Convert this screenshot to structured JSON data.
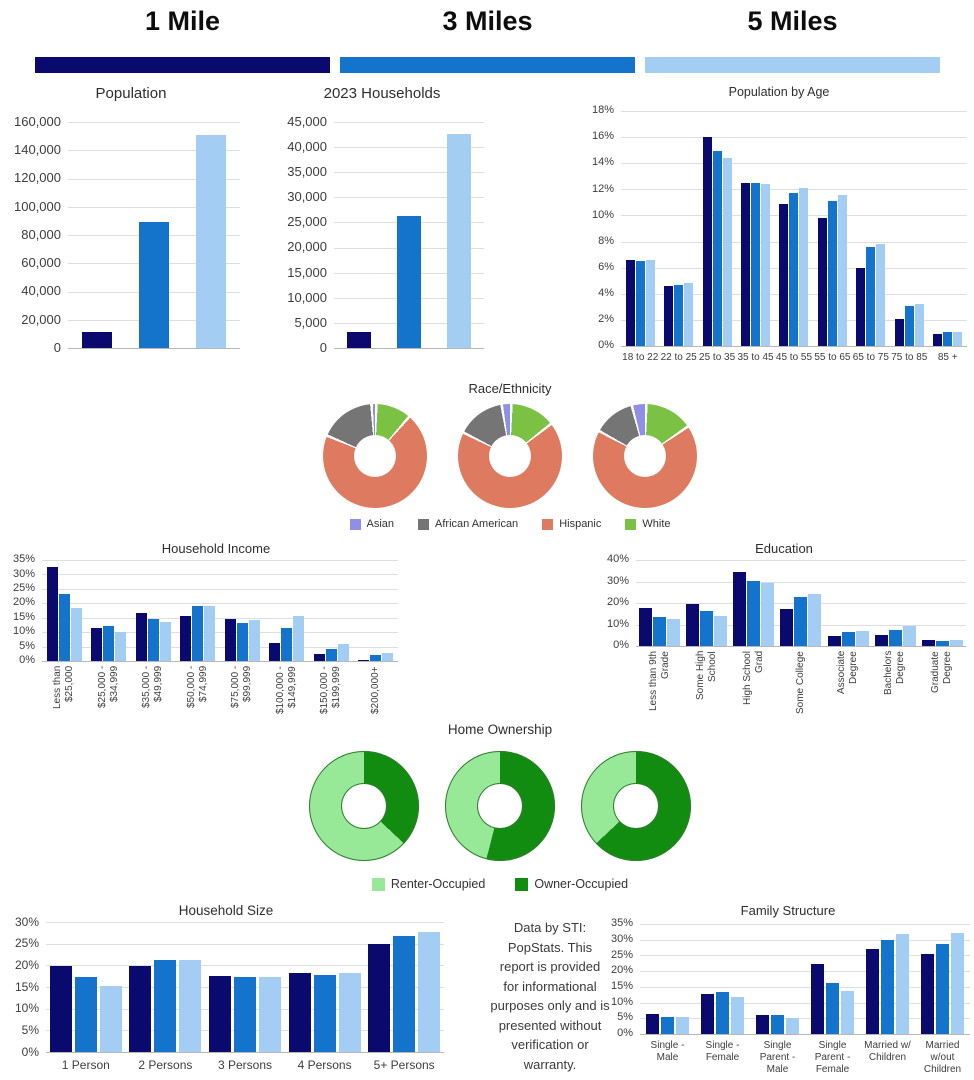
{
  "header": {
    "columns": [
      {
        "label": "1 Mile",
        "color": "#0a0a6e"
      },
      {
        "label": "3 Miles",
        "color": "#1474cb"
      },
      {
        "label": "5 Miles",
        "color": "#a4cdf4"
      }
    ]
  },
  "palette": {
    "series": [
      "#0a0a6e",
      "#1474cb",
      "#a4cdf4"
    ],
    "gridline": "#dedede",
    "axis_line": "#b8b8b8"
  },
  "series_names": [
    "1 Mile",
    "3 Miles",
    "5 Miles"
  ],
  "disclaimer": {
    "lines": [
      "Data by STI:",
      "PopStats. This",
      "report is provided",
      "for informational",
      "purposes only and is",
      "presented without",
      "verification or",
      "warranty."
    ]
  },
  "chart_data": [
    {
      "key": "population",
      "type": "bar",
      "title": "Population",
      "ylim": [
        0,
        160000
      ],
      "ystep": 20000,
      "format": "number",
      "grid": true,
      "legend_position": "none",
      "categories": [
        "1 Mile",
        "3 Miles",
        "5 Miles"
      ],
      "values": [
        11000,
        89000,
        151000
      ]
    },
    {
      "key": "households",
      "type": "bar",
      "title": "2023 Households",
      "ylim": [
        0,
        45000
      ],
      "ystep": 5000,
      "format": "number",
      "grid": true,
      "legend_position": "none",
      "categories": [
        "1 Mile",
        "3 Miles",
        "5 Miles"
      ],
      "values": [
        3200,
        26200,
        42700
      ]
    },
    {
      "key": "age",
      "type": "bar",
      "title": "Population by Age",
      "ylim": [
        0,
        18
      ],
      "ystep": 2,
      "format": "percent",
      "grid": true,
      "legend_position": "none",
      "categories": [
        "18 to 22",
        "22 to 25",
        "25 to 35",
        "35 to 45",
        "45 to 55",
        "55 to 65",
        "65 to 75",
        "75 to 85",
        "85 +"
      ],
      "series": [
        {
          "name": "1 Mile",
          "values": [
            6.6,
            4.6,
            16.0,
            12.5,
            10.9,
            9.8,
            6.0,
            2.1,
            0.9
          ]
        },
        {
          "name": "3 Miles",
          "values": [
            6.5,
            4.7,
            14.9,
            12.5,
            11.7,
            11.1,
            7.6,
            3.1,
            1.1
          ]
        },
        {
          "name": "5 Miles",
          "values": [
            6.6,
            4.8,
            14.4,
            12.4,
            12.1,
            11.6,
            7.8,
            3.2,
            1.1
          ]
        }
      ]
    },
    {
      "key": "race",
      "type": "donut-set",
      "title": "Race/Ethnicity",
      "legend": [
        {
          "label": "Asian",
          "color": "#8f8fe8"
        },
        {
          "label": "African American",
          "color": "#757575"
        },
        {
          "label": "Hispanic",
          "color": "#dd7a5f"
        },
        {
          "label": "White",
          "color": "#7bc143"
        }
      ],
      "draw_order": [
        "White",
        "Hispanic",
        "African American",
        "Asian"
      ],
      "donuts": [
        {
          "name": "1 Mile",
          "values": {
            "Asian": 1.5,
            "African American": 17.5,
            "Hispanic": 70.0,
            "White": 11.0
          }
        },
        {
          "name": "3 Miles",
          "values": {
            "Asian": 3.0,
            "African American": 15.0,
            "Hispanic": 68.0,
            "White": 14.0
          }
        },
        {
          "name": "5 Miles",
          "values": {
            "Asian": 4.5,
            "African American": 13.0,
            "Hispanic": 67.5,
            "White": 15.0
          }
        }
      ]
    },
    {
      "key": "income",
      "type": "bar",
      "title": "Household Income",
      "ylim": [
        0,
        35
      ],
      "ystep": 5,
      "format": "percent",
      "grid": true,
      "legend_position": "none",
      "categories": [
        "Less than $25,000",
        "$25,000 - $34,999",
        "$35,000 - $49,999",
        "$50,000 - $74,999",
        "$75,000 - $99,999",
        "$100,000 - $149,999",
        "$150,000 - $199,999",
        "$200,000+"
      ],
      "series": [
        {
          "name": "1 Mile",
          "values": [
            32.5,
            11.5,
            16.5,
            15.5,
            14.5,
            6.3,
            2.5,
            0.4
          ]
        },
        {
          "name": "3 Miles",
          "values": [
            23.2,
            12.1,
            14.5,
            19.2,
            13.3,
            11.5,
            4.0,
            2.0
          ]
        },
        {
          "name": "5 Miles",
          "values": [
            18.5,
            10.1,
            13.5,
            19.2,
            14.2,
            15.5,
            5.8,
            2.8
          ]
        }
      ]
    },
    {
      "key": "education",
      "type": "bar",
      "title": "Education",
      "ylim": [
        0,
        40
      ],
      "ystep": 10,
      "format": "percent",
      "grid": true,
      "legend_position": "none",
      "categories": [
        "Less than 9th Grade",
        "Some High School",
        "High School Grad",
        "Some College",
        "Associate Degree",
        "Bachelors Degree",
        "Graduate Degree"
      ],
      "series": [
        {
          "name": "1 Mile",
          "values": [
            17.5,
            19.5,
            34.5,
            17.0,
            4.5,
            5.0,
            3.0
          ]
        },
        {
          "name": "3 Miles",
          "values": [
            13.5,
            16.5,
            30.0,
            23.0,
            6.5,
            7.5,
            2.5
          ]
        },
        {
          "name": "5 Miles",
          "values": [
            12.5,
            14.0,
            29.5,
            24.0,
            7.0,
            9.5,
            2.8
          ]
        }
      ]
    },
    {
      "key": "ownership",
      "type": "donut-set",
      "title": "Home Ownership",
      "legend": [
        {
          "label": "Renter-Occupied",
          "color": "#97e897"
        },
        {
          "label": "Owner-Occupied",
          "color": "#118c11"
        }
      ],
      "draw_order": [
        "Owner-Occupied",
        "Renter-Occupied"
      ],
      "donuts": [
        {
          "name": "1 Mile",
          "values": {
            "Renter-Occupied": 63.0,
            "Owner-Occupied": 37.0
          }
        },
        {
          "name": "3 Miles",
          "values": {
            "Renter-Occupied": 46.0,
            "Owner-Occupied": 54.0
          }
        },
        {
          "name": "5 Miles",
          "values": {
            "Renter-Occupied": 37.0,
            "Owner-Occupied": 63.0
          }
        }
      ]
    },
    {
      "key": "size",
      "type": "bar",
      "title": "Household Size",
      "ylim": [
        0,
        30
      ],
      "ystep": 5,
      "format": "percent",
      "grid": true,
      "legend_position": "none",
      "categories": [
        "1 Person",
        "2 Persons",
        "3 Persons",
        "4 Persons",
        "5+ Persons"
      ],
      "series": [
        {
          "name": "1 Mile",
          "values": [
            19.8,
            19.8,
            17.5,
            18.2,
            24.9
          ]
        },
        {
          "name": "3 Miles",
          "values": [
            17.2,
            21.2,
            17.3,
            17.7,
            26.8
          ]
        },
        {
          "name": "5 Miles",
          "values": [
            15.2,
            21.2,
            17.3,
            18.3,
            27.8
          ]
        }
      ]
    },
    {
      "key": "family",
      "type": "bar",
      "title": "Family Structure",
      "ylim": [
        0,
        35
      ],
      "ystep": 5,
      "format": "percent",
      "grid": true,
      "legend_position": "none",
      "categories": [
        "Single - Male",
        "Single - Female",
        "Single Parent - Male",
        "Single Parent - Female",
        "Married w/ Children",
        "Married w/out Children"
      ],
      "series": [
        {
          "name": "1 Mile",
          "values": [
            6.3,
            12.8,
            6.1,
            22.4,
            27.0,
            25.5
          ]
        },
        {
          "name": "3 Miles",
          "values": [
            5.5,
            13.5,
            6.0,
            16.1,
            29.8,
            28.6
          ]
        },
        {
          "name": "5 Miles",
          "values": [
            5.5,
            11.8,
            5.0,
            13.6,
            31.7,
            32.2
          ]
        }
      ]
    }
  ]
}
